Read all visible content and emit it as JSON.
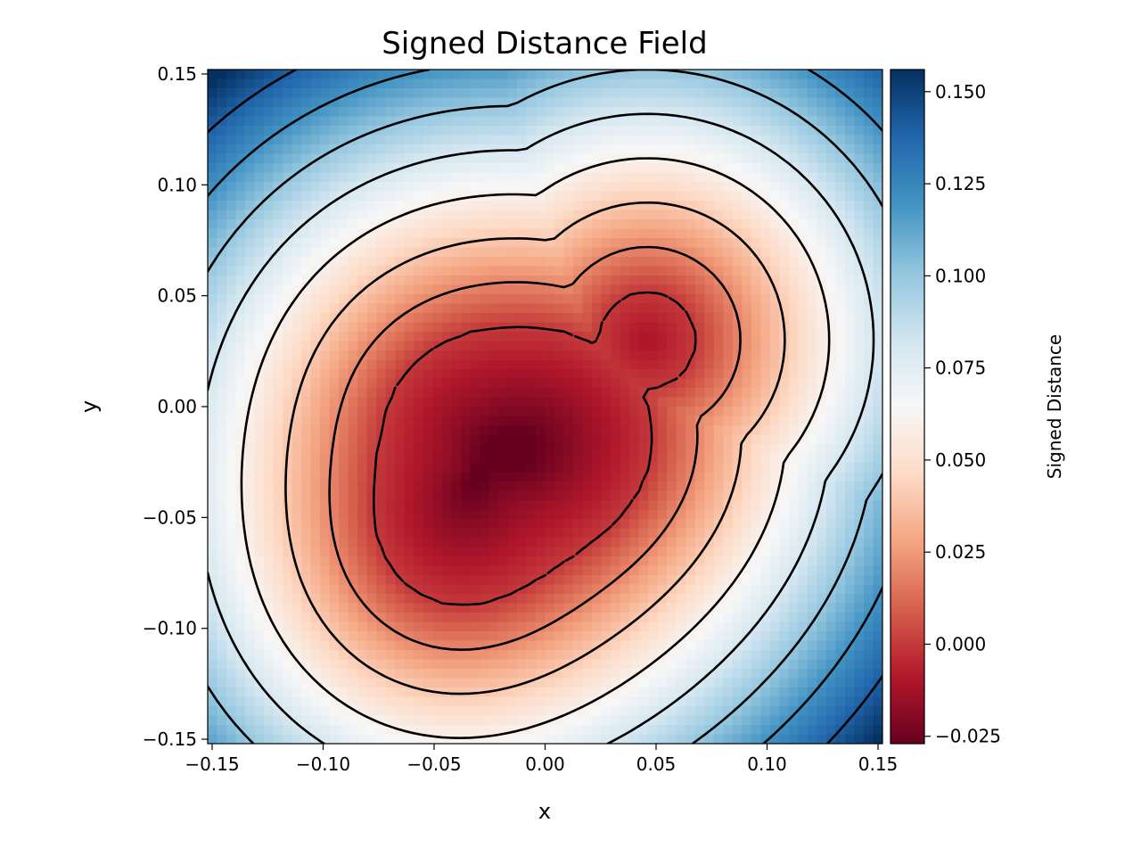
{
  "chart_data": {
    "type": "heatmap",
    "title": "Signed Distance Field",
    "xlabel": "x",
    "ylabel": "y",
    "xlim": [
      -0.152,
      0.152
    ],
    "ylim": [
      -0.152,
      0.152
    ],
    "xticks": [
      -0.15,
      -0.1,
      -0.05,
      0.0,
      0.05,
      0.1,
      0.15
    ],
    "xtick_labels": [
      "−0.15",
      "−0.10",
      "−0.05",
      "0.00",
      "0.05",
      "0.10",
      "0.15"
    ],
    "yticks": [
      -0.15,
      -0.1,
      -0.05,
      0.0,
      0.05,
      0.1,
      0.15
    ],
    "ytick_labels": [
      "−0.15",
      "−0.10",
      "−0.05",
      "0.00",
      "0.05",
      "0.10",
      "0.15"
    ],
    "colormap": "RdBu",
    "colorbar": {
      "label": "Signed Distance",
      "vmin": -0.027,
      "vmax": 0.156,
      "ticks": [
        -0.025,
        0.0,
        0.025,
        0.05,
        0.075,
        0.1,
        0.125,
        0.15
      ],
      "tick_labels": [
        "−0.025",
        "0.000",
        "0.025",
        "0.050",
        "0.075",
        "0.100",
        "0.125",
        "0.150"
      ]
    },
    "field_minimum": {
      "x": -0.028,
      "y": -0.025,
      "value": -0.027
    },
    "contour_levels": [
      0.0,
      0.02,
      0.04,
      0.06,
      0.08,
      0.1,
      0.12,
      0.14
    ],
    "zero_contour_style": "dashed",
    "grid": false
  },
  "colors": {
    "contour": "#000000",
    "negative": "#67001f",
    "neutral": "#f7f7f7",
    "positive": "#053061"
  }
}
